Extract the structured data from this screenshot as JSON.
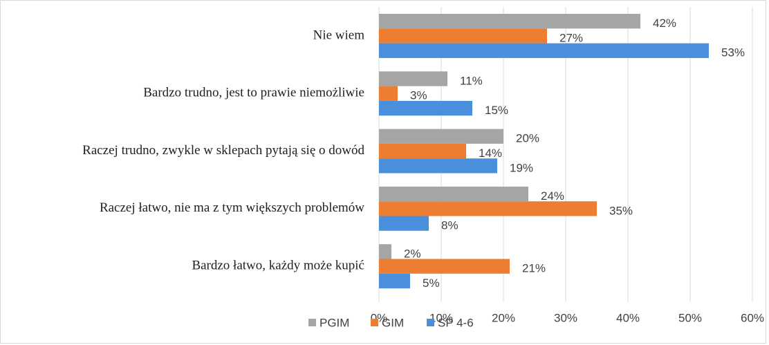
{
  "chart_data": {
    "type": "bar",
    "orientation": "horizontal",
    "categories": [
      "Nie wiem",
      "Bardzo trudno, jest to prawie niemożliwie",
      "Raczej trudno, zwykle w sklepach pytają się o dowód",
      "Raczej łatwo, nie ma z tym większych problemów",
      "Bardzo łatwo, każdy może kupić"
    ],
    "series": [
      {
        "name": "PGIM",
        "color": "#a5a5a5",
        "values": [
          42,
          11,
          20,
          24,
          2
        ],
        "value_labels": [
          "42%",
          "11%",
          "20%",
          "24%",
          "2%"
        ]
      },
      {
        "name": "GIM",
        "color": "#ed7d31",
        "values": [
          27,
          3,
          14,
          35,
          21
        ],
        "value_labels": [
          "27%",
          "3%",
          "14%",
          "35%",
          "21%"
        ]
      },
      {
        "name": "SP 4-6",
        "color": "#4a8fdb",
        "values": [
          53,
          15,
          19,
          8,
          5
        ],
        "value_labels": [
          "53%",
          "15%",
          "19%",
          "8%",
          "5%"
        ]
      }
    ],
    "xlim": [
      0,
      60
    ],
    "xticks": [
      {
        "value": 0,
        "label": "0%"
      },
      {
        "value": 10,
        "label": "10%"
      },
      {
        "value": 20,
        "label": "20%"
      },
      {
        "value": 30,
        "label": "30%"
      },
      {
        "value": 40,
        "label": "40%"
      },
      {
        "value": 50,
        "label": "50%"
      },
      {
        "value": 60,
        "label": "60%"
      }
    ],
    "grid": true,
    "legend": "bottom"
  }
}
